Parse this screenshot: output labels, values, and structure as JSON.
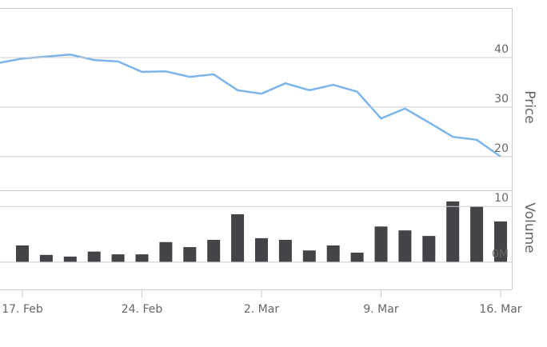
{
  "chart_data": {
    "type": "stock",
    "categories": [
      null,
      "17. Feb",
      null,
      null,
      null,
      null,
      "24. Feb",
      null,
      null,
      null,
      null,
      "2. Mar",
      null,
      null,
      null,
      null,
      "9. Mar",
      null,
      null,
      null,
      null,
      "16. Mar"
    ],
    "series": [
      {
        "type": "line",
        "color": "#7cb5ec",
        "values": [
          38.9,
          39.8,
          40.2,
          40.6,
          39.5,
          39.2,
          37.1,
          37.2,
          36.1,
          36.6,
          33.4,
          32.7,
          34.8,
          33.4,
          34.5,
          33.1,
          27.7,
          29.7,
          26.9,
          24.0,
          23.4,
          20.0
        ]
      },
      {
        "type": "bar",
        "axis": "y2",
        "color": "#434348",
        "values": [
          null,
          3.0,
          1.3,
          1.0,
          1.9,
          1.4,
          1.4,
          3.6,
          2.7,
          4.0,
          8.6,
          4.3,
          4.0,
          2.1,
          3.0,
          1.7,
          6.4,
          5.7,
          4.7,
          10.9,
          10.0,
          7.3
        ]
      }
    ],
    "y_label": "Price",
    "ylim": [
      13.2,
      50
    ],
    "yticks": [
      20,
      30,
      40
    ],
    "y2_label": "Volume",
    "y2lim": [
      -4.9,
      12.9
    ],
    "y2ticks": [
      {
        "value": 0,
        "label": "0M"
      },
      10
    ],
    "grid": true
  }
}
